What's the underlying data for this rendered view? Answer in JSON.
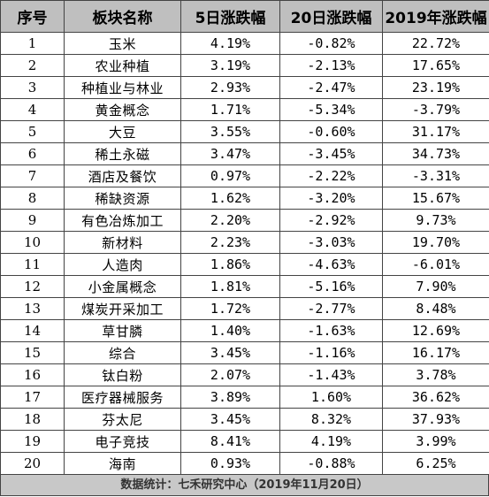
{
  "headers": [
    "序号",
    "板块名称",
    "5日涨跌幅",
    "20日涨跌幅",
    "2019年涨跌幅"
  ],
  "rows": [
    [
      "1",
      "玉米",
      "4.19%",
      "-0.82%",
      "22.72%"
    ],
    [
      "2",
      "农业种植",
      "3.19%",
      "-2.13%",
      "17.65%"
    ],
    [
      "3",
      "种植业与林业",
      "2.93%",
      "-2.47%",
      "23.19%"
    ],
    [
      "4",
      "黄金概念",
      "1.71%",
      "-5.34%",
      "-3.79%"
    ],
    [
      "5",
      "大豆",
      "3.55%",
      "-0.60%",
      "31.17%"
    ],
    [
      "6",
      "稀土永磁",
      "3.47%",
      "-3.45%",
      "34.73%"
    ],
    [
      "7",
      "酒店及餐饮",
      "0.97%",
      "-2.22%",
      "-3.31%"
    ],
    [
      "8",
      "稀缺资源",
      "1.62%",
      "-3.20%",
      "15.67%"
    ],
    [
      "9",
      "有色冶炼加工",
      "2.20%",
      "-2.92%",
      "9.73%"
    ],
    [
      "10",
      "新材料",
      "2.23%",
      "-3.03%",
      "19.70%"
    ],
    [
      "11",
      "人造肉",
      "1.86%",
      "-4.63%",
      "-6.01%"
    ],
    [
      "12",
      "小金属概念",
      "1.81%",
      "-5.16%",
      "7.90%"
    ],
    [
      "13",
      "煤炭开采加工",
      "1.72%",
      "-2.77%",
      "8.48%"
    ],
    [
      "14",
      "草甘膦",
      "1.40%",
      "-1.63%",
      "12.69%"
    ],
    [
      "15",
      "综合",
      "3.45%",
      "-1.16%",
      "16.17%"
    ],
    [
      "16",
      "钛白粉",
      "2.07%",
      "-1.43%",
      "3.78%"
    ],
    [
      "17",
      "医疗器械服务",
      "3.89%",
      "1.60%",
      "36.62%"
    ],
    [
      "18",
      "芬太尼",
      "3.45%",
      "8.32%",
      "37.93%"
    ],
    [
      "19",
      "电子竞技",
      "8.41%",
      "4.19%",
      "3.99%"
    ],
    [
      "20",
      "海南",
      "0.93%",
      "-0.88%",
      "6.25%"
    ]
  ],
  "footer": "数据统计：七禾研究中心（2019年11月20日）",
  "colors": {
    "header_bg": "#bfbfbf",
    "footer_bg": "#c8c8c8",
    "border": "#444444"
  }
}
